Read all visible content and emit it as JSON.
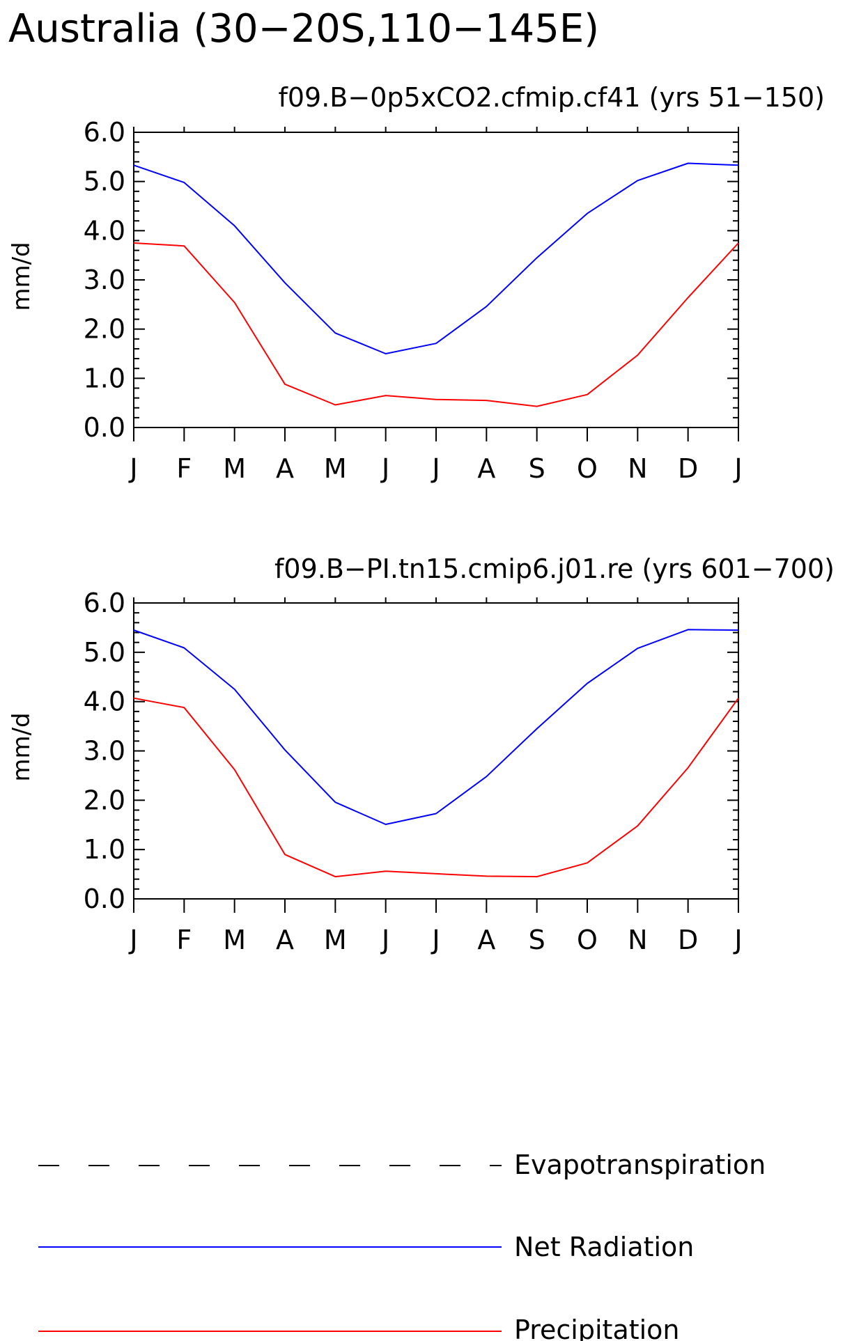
{
  "title": "Australia (30−20S,110−145E)",
  "colors": {
    "net_radiation": "#0000ff",
    "precipitation": "#ff0000",
    "evapotranspiration": "#000000",
    "axes": "#000000"
  },
  "chart_data": [
    {
      "type": "line",
      "title": "f09.B−0p5xCO2.cfmip.cf41 (yrs 51−150)",
      "ylabel": "mm/d",
      "xlabel": "",
      "ylim": [
        0,
        6
      ],
      "yticks": [
        "0.0",
        "1.0",
        "2.0",
        "3.0",
        "4.0",
        "5.0",
        "6.0"
      ],
      "categories": [
        "J",
        "F",
        "M",
        "A",
        "M",
        "J",
        "J",
        "A",
        "S",
        "O",
        "N",
        "D",
        "J"
      ],
      "grid": false,
      "series": [
        {
          "name": "Net Radiation",
          "color": "#0000ff",
          "dash": "solid",
          "values": [
            5.33,
            4.98,
            4.1,
            2.94,
            1.92,
            1.5,
            1.71,
            2.46,
            3.45,
            4.35,
            5.02,
            5.37,
            5.33
          ]
        },
        {
          "name": "Precipitation",
          "color": "#ff0000",
          "dash": "solid",
          "values": [
            3.75,
            3.69,
            2.54,
            0.88,
            0.46,
            0.65,
            0.57,
            0.55,
            0.43,
            0.67,
            1.47,
            2.64,
            3.75
          ]
        }
      ]
    },
    {
      "type": "line",
      "title": "f09.B−PI.tn15.cmip6.j01.re (yrs 601−700)",
      "ylabel": "mm/d",
      "xlabel": "",
      "ylim": [
        0,
        6
      ],
      "yticks": [
        "0.0",
        "1.0",
        "2.0",
        "3.0",
        "4.0",
        "5.0",
        "6.0"
      ],
      "categories": [
        "J",
        "F",
        "M",
        "A",
        "M",
        "J",
        "J",
        "A",
        "S",
        "O",
        "N",
        "D",
        "J"
      ],
      "grid": false,
      "series": [
        {
          "name": "Net Radiation",
          "color": "#0000ff",
          "dash": "solid",
          "values": [
            5.45,
            5.09,
            4.25,
            3.02,
            1.96,
            1.51,
            1.73,
            2.48,
            3.45,
            4.37,
            5.08,
            5.46,
            5.45
          ]
        },
        {
          "name": "Precipitation",
          "color": "#ff0000",
          "dash": "solid",
          "values": [
            4.07,
            3.88,
            2.62,
            0.9,
            0.45,
            0.56,
            0.51,
            0.46,
            0.45,
            0.73,
            1.48,
            2.66,
            4.07
          ]
        }
      ]
    }
  ],
  "legend": {
    "placement": "bottom",
    "items": [
      {
        "label": "Evapotranspiration",
        "color": "#000000",
        "dash": "dashed"
      },
      {
        "label": "Net Radiation",
        "color": "#0000ff",
        "dash": "solid"
      },
      {
        "label": "Precipitation",
        "color": "#ff0000",
        "dash": "solid"
      }
    ]
  }
}
